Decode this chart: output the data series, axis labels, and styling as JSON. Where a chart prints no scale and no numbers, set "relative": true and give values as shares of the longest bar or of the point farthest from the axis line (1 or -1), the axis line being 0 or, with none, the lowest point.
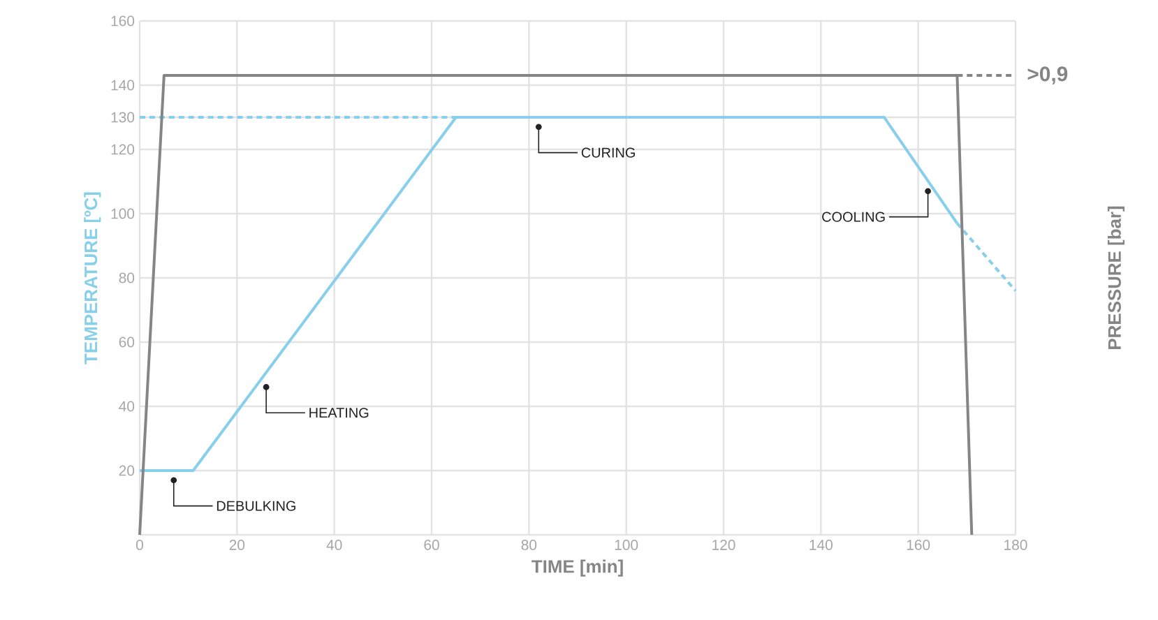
{
  "chart_data": [
    {
      "type": "line",
      "xlabel": "TIME [min]",
      "ylabel": "TEMPERATURE [ºC]",
      "xlim": [
        0,
        180
      ],
      "xticks": [
        0,
        20,
        40,
        60,
        80,
        100,
        120,
        140,
        160,
        180
      ],
      "ylim": [
        0,
        160
      ],
      "yticks": [
        {
          "value": 0,
          "label": null
        },
        20,
        40,
        60,
        80,
        100,
        120,
        130,
        140,
        160
      ],
      "grid": true,
      "series": [
        {
          "color": "#87cfea",
          "x": [
            0,
            11,
            65,
            153,
            168
          ],
          "values": [
            20,
            20,
            130,
            130,
            97
          ]
        },
        {
          "color": "#87cfea",
          "line_style": "dashed",
          "x": [
            0,
            65
          ],
          "values": [
            130,
            130
          ]
        },
        {
          "color": "#87cfea",
          "line_style": "dashed",
          "x": [
            168,
            180
          ],
          "values": [
            97,
            76
          ]
        }
      ],
      "annotations": [
        {
          "text": "DEBULKING",
          "x": 7,
          "y": 17
        },
        {
          "text": "HEATING",
          "x": 26,
          "y": 46
        },
        {
          "text": "CURING",
          "x": 82,
          "y": 127
        },
        {
          "text": "COOLING",
          "x": 162,
          "y": 107
        }
      ]
    },
    {
      "type": "line",
      "ylabel": "PRESSURE [bar]",
      "relative": true,
      "xlim": [
        0,
        180
      ],
      "series": [
        {
          "color": "#858585",
          "x": [
            0,
            5,
            168,
            171
          ],
          "values": [
            0,
            1,
            1,
            0
          ]
        },
        {
          "color": "#858585",
          "line_style": "dashed",
          "x": [
            168,
            180
          ],
          "values": [
            1,
            1
          ]
        }
      ],
      "annotations": [
        ">0,9"
      ]
    }
  ]
}
